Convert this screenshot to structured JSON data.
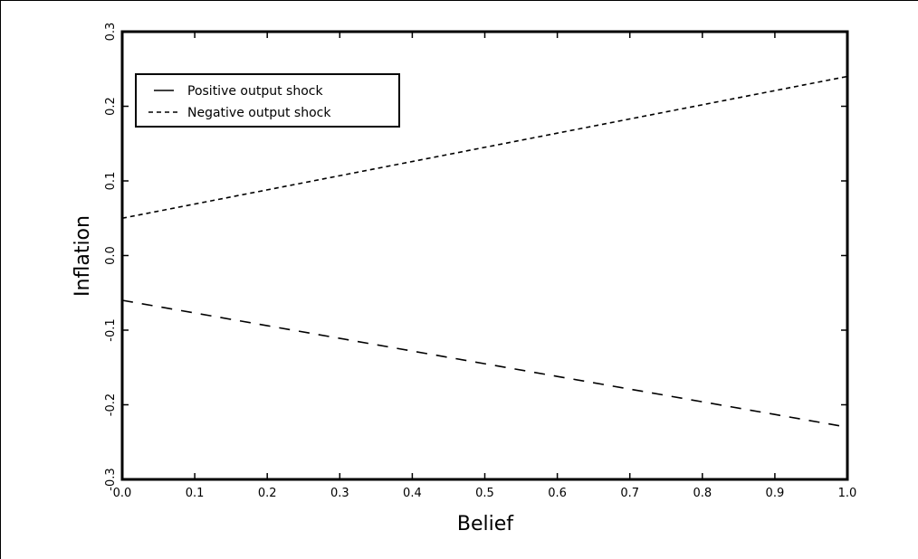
{
  "chart_data": {
    "type": "line",
    "title": "",
    "xlabel": "Belief",
    "ylabel": "Inflation",
    "xlim": [
      0.0,
      1.0
    ],
    "ylim": [
      -0.3,
      0.3
    ],
    "xticks": [
      0.0,
      0.1,
      0.2,
      0.3,
      0.4,
      0.5,
      0.6,
      0.7,
      0.8,
      0.9,
      1.0
    ],
    "xtick_labels": [
      "0.0",
      "0.1",
      "0.2",
      "0.3",
      "0.4",
      "0.5",
      "0.6",
      "0.7",
      "0.8",
      "0.9",
      "1.0"
    ],
    "yticks": [
      -0.3,
      -0.2,
      -0.1,
      0.0,
      0.1,
      0.2,
      0.3
    ],
    "ytick_labels": [
      "-0.3",
      "-0.2",
      "-0.1",
      "0.0",
      "0.1",
      "0.2",
      "0.3"
    ],
    "grid": false,
    "legend_position": "top-left",
    "series": [
      {
        "name": "Positive output shock",
        "style": "long-dash",
        "color": "#000000",
        "x": [
          0.0,
          0.1,
          0.2,
          0.3,
          0.4,
          0.5,
          0.6,
          0.7,
          0.8,
          0.9,
          1.0
        ],
        "y": [
          -0.06,
          -0.077,
          -0.094,
          -0.111,
          -0.128,
          -0.145,
          -0.162,
          -0.179,
          -0.196,
          -0.213,
          -0.23
        ]
      },
      {
        "name": "Negative output shock",
        "style": "short-dash",
        "color": "#000000",
        "x": [
          0.0,
          0.1,
          0.2,
          0.3,
          0.4,
          0.5,
          0.6,
          0.7,
          0.8,
          0.9,
          1.0
        ],
        "y": [
          0.05,
          0.069,
          0.088,
          0.107,
          0.126,
          0.145,
          0.164,
          0.183,
          0.202,
          0.221,
          0.24
        ]
      }
    ]
  }
}
